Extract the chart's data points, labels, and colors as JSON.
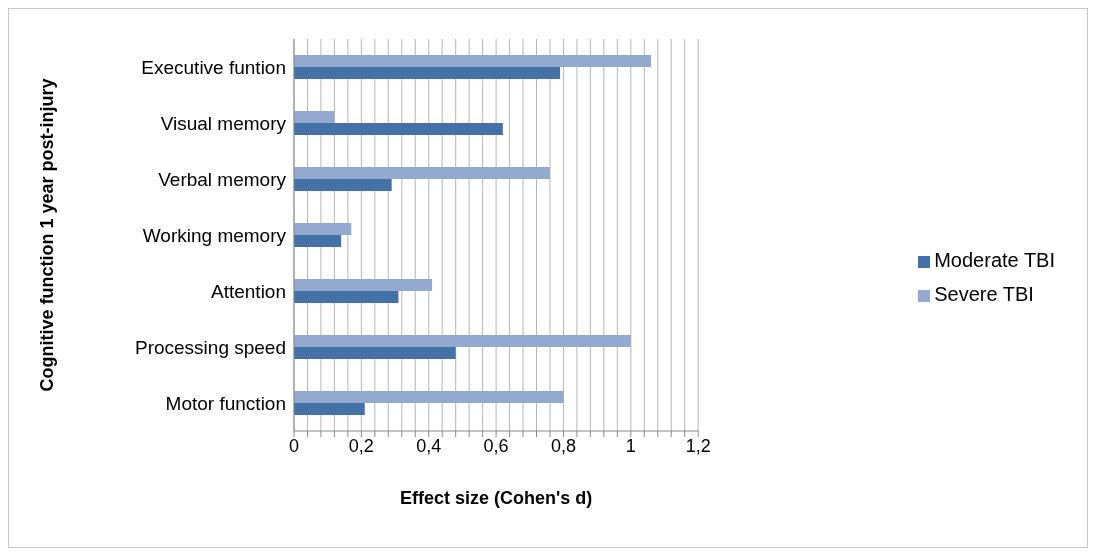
{
  "chart_data": {
    "type": "bar",
    "orientation": "horizontal",
    "xlabel": "Effect size (Cohen's d)",
    "ylabel": "Cognitive function 1 year post-injury",
    "categories": [
      "Executive funtion",
      "Visual memory",
      "Verbal memory",
      "Working memory",
      "Attention",
      "Processing speed",
      "Motor function"
    ],
    "series": [
      {
        "name": "Severe TBI",
        "color": "#93a9cf",
        "values": [
          1.06,
          0.12,
          0.76,
          0.17,
          0.41,
          1.0,
          0.8
        ]
      },
      {
        "name": "Moderate TBI",
        "color": "#4471a7",
        "values": [
          0.79,
          0.62,
          0.29,
          0.14,
          0.31,
          0.48,
          0.21
        ]
      }
    ],
    "xlim": [
      0,
      1.2
    ],
    "xticks": [
      {
        "value": 0,
        "label": "0"
      },
      {
        "value": 0.04,
        "label": null
      },
      {
        "value": 0.08,
        "label": null
      },
      {
        "value": 0.12,
        "label": null
      },
      {
        "value": 0.16,
        "label": null
      },
      {
        "value": 0.2,
        "label": "0,2"
      },
      {
        "value": 0.24,
        "label": null
      },
      {
        "value": 0.28,
        "label": null
      },
      {
        "value": 0.32,
        "label": null
      },
      {
        "value": 0.36,
        "label": null
      },
      {
        "value": 0.4,
        "label": "0,4"
      },
      {
        "value": 0.44,
        "label": null
      },
      {
        "value": 0.48,
        "label": null
      },
      {
        "value": 0.52,
        "label": null
      },
      {
        "value": 0.56,
        "label": null
      },
      {
        "value": 0.6,
        "label": "0,6"
      },
      {
        "value": 0.64,
        "label": null
      },
      {
        "value": 0.68,
        "label": null
      },
      {
        "value": 0.72,
        "label": null
      },
      {
        "value": 0.76,
        "label": null
      },
      {
        "value": 0.8,
        "label": "0,8"
      },
      {
        "value": 0.84,
        "label": null
      },
      {
        "value": 0.88,
        "label": null
      },
      {
        "value": 0.92,
        "label": null
      },
      {
        "value": 0.96,
        "label": null
      },
      {
        "value": 1,
        "label": "1"
      },
      {
        "value": 1.04,
        "label": null
      },
      {
        "value": 1.08,
        "label": null
      },
      {
        "value": 1.12,
        "label": null
      },
      {
        "value": 1.16,
        "label": null
      },
      {
        "value": 1.2,
        "label": "1,2"
      }
    ],
    "grid": "x",
    "legend": "right"
  }
}
